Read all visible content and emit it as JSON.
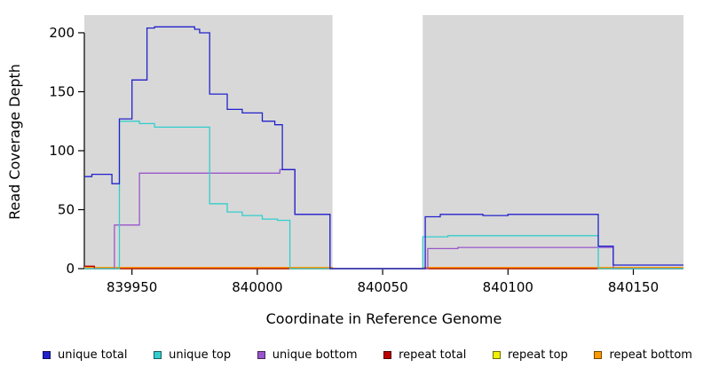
{
  "figure": {
    "background": "#ffffff",
    "shaded_band_color": "#d8d8d8",
    "axis_color": "#000000"
  },
  "chart_data": {
    "type": "line",
    "step": true,
    "title": "",
    "xlabel": "Coordinate in Reference Genome",
    "ylabel": "Read Coverage Depth",
    "xlim": [
      839931,
      840170
    ],
    "ylim": [
      0,
      215
    ],
    "x_ticks": [
      839950,
      840000,
      840050,
      840100,
      840150
    ],
    "y_ticks": [
      0,
      50,
      100,
      150,
      200
    ],
    "grid": false,
    "legend_position": "bottom",
    "shaded_regions": [
      {
        "from": 839931,
        "to": 840030
      },
      {
        "from": 840066,
        "to": 840170
      }
    ],
    "series": [
      {
        "name": "repeat top",
        "color": "#f0f000",
        "points": [
          [
            839931,
            0
          ]
        ]
      },
      {
        "name": "repeat bottom",
        "color": "#ff9900",
        "points": [
          [
            839931,
            1
          ],
          [
            840030,
            0
          ],
          [
            840066,
            1
          ]
        ]
      },
      {
        "name": "repeat total",
        "color": "#bb0000",
        "points": [
          [
            839931,
            2
          ],
          [
            839935,
            0
          ]
        ]
      },
      {
        "name": "unique bottom",
        "color": "#9955cc",
        "points": [
          [
            839931,
            0
          ],
          [
            839943,
            37
          ],
          [
            839953,
            81
          ],
          [
            840009,
            84
          ],
          [
            840015,
            46
          ],
          [
            840029,
            0
          ],
          [
            840068,
            17
          ],
          [
            840080,
            18
          ],
          [
            840142,
            0
          ]
        ]
      },
      {
        "name": "unique top",
        "color": "#33cdcd",
        "points": [
          [
            839931,
            0
          ],
          [
            839945,
            125
          ],
          [
            839953,
            123
          ],
          [
            839959,
            120
          ],
          [
            839981,
            55
          ],
          [
            839988,
            48
          ],
          [
            839994,
            45
          ],
          [
            840002,
            42
          ],
          [
            840008,
            41
          ],
          [
            840013,
            0
          ],
          [
            840066,
            27
          ],
          [
            840076,
            28
          ],
          [
            840136,
            0
          ]
        ]
      },
      {
        "name": "unique total",
        "color": "#2222cc",
        "points": [
          [
            839931,
            78
          ],
          [
            839934,
            80
          ],
          [
            839942,
            72
          ],
          [
            839945,
            127
          ],
          [
            839950,
            160
          ],
          [
            839956,
            204
          ],
          [
            839959,
            205
          ],
          [
            839975,
            203
          ],
          [
            839977,
            200
          ],
          [
            839981,
            148
          ],
          [
            839988,
            135
          ],
          [
            839994,
            132
          ],
          [
            840002,
            125
          ],
          [
            840007,
            122
          ],
          [
            840010,
            84
          ],
          [
            840015,
            46
          ],
          [
            840029,
            0
          ],
          [
            840067,
            44
          ],
          [
            840073,
            46
          ],
          [
            840090,
            45
          ],
          [
            840100,
            46
          ],
          [
            840136,
            19
          ],
          [
            840142,
            3
          ]
        ]
      }
    ],
    "legend": [
      {
        "label": "unique total",
        "color": "#2222cc"
      },
      {
        "label": "unique top",
        "color": "#33cdcd"
      },
      {
        "label": "unique bottom",
        "color": "#9955cc"
      },
      {
        "label": "repeat total",
        "color": "#bb0000"
      },
      {
        "label": "repeat top",
        "color": "#f0f000"
      },
      {
        "label": "repeat bottom",
        "color": "#ff9900"
      }
    ]
  }
}
